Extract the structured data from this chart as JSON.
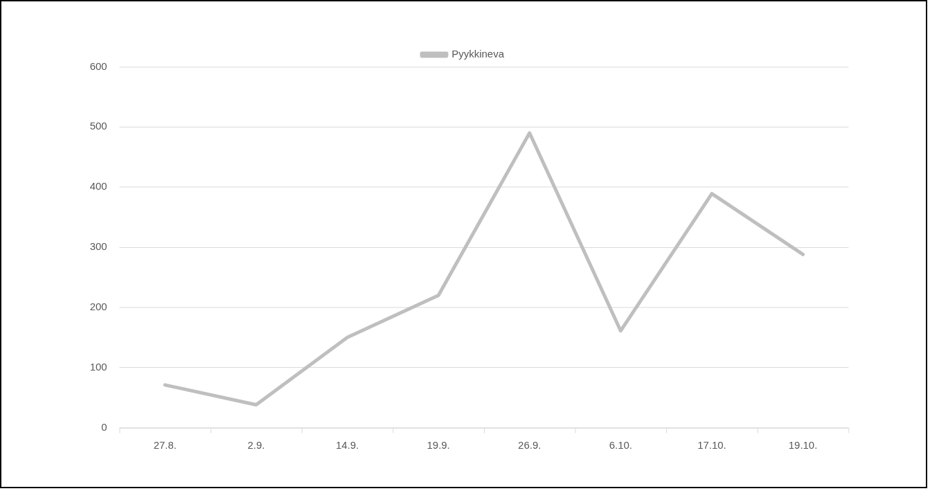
{
  "chart_data": {
    "type": "line",
    "categories": [
      "27.8.",
      "2.9.",
      "14.9.",
      "19.9.",
      "26.9.",
      "6.10.",
      "17.10.",
      "19.10."
    ],
    "series": [
      {
        "name": "Pyykkineva",
        "color": "#bfbfbf",
        "values": [
          71,
          38,
          150,
          220,
          490,
          161,
          389,
          288
        ]
      }
    ],
    "ylim": [
      0,
      600
    ],
    "yticks": [
      0,
      100,
      200,
      300,
      400,
      500,
      600
    ],
    "grid": "y",
    "legend": "top",
    "marker": "none",
    "line_style": "solid"
  }
}
